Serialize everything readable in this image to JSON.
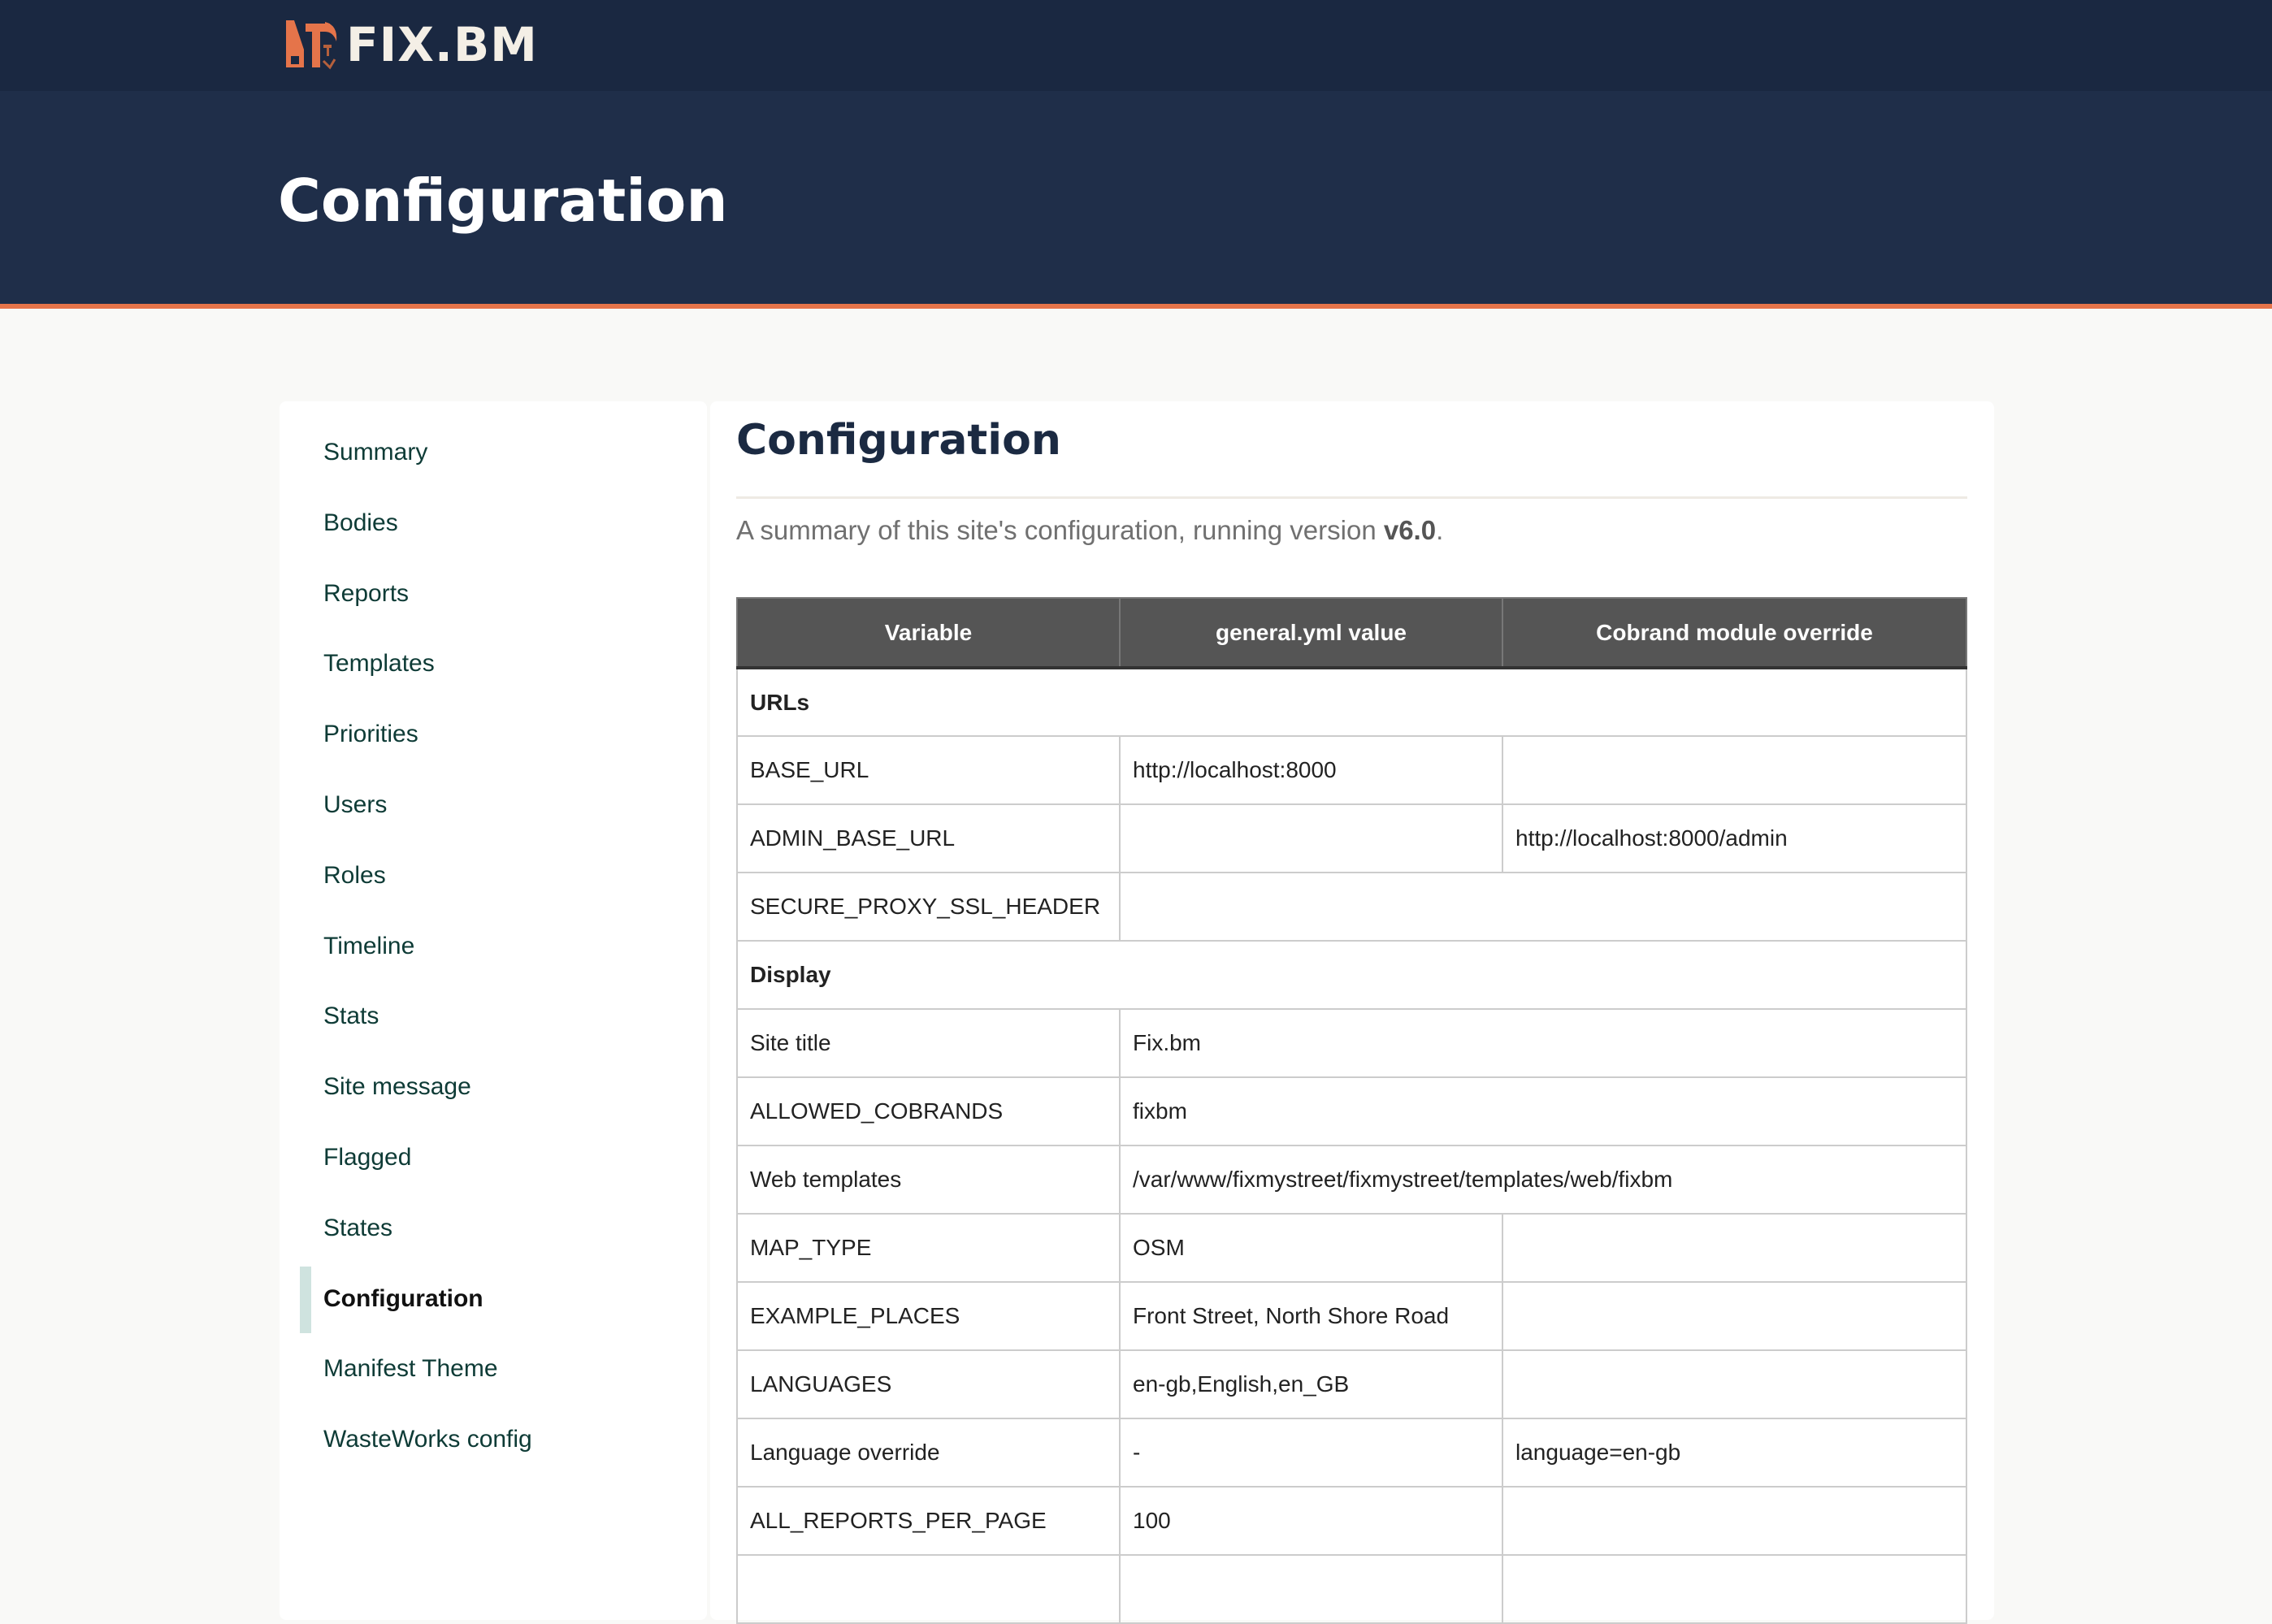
{
  "header": {
    "logo_text": "FIX.BM",
    "title": "Configuration"
  },
  "colors": {
    "header": "#1f2e49",
    "accent": "#e5744a",
    "active_marker": "#cfe3df"
  },
  "sidebar": {
    "items": [
      {
        "label": "Summary"
      },
      {
        "label": "Bodies"
      },
      {
        "label": "Reports"
      },
      {
        "label": "Templates"
      },
      {
        "label": "Priorities"
      },
      {
        "label": "Users"
      },
      {
        "label": "Roles"
      },
      {
        "label": "Timeline"
      },
      {
        "label": "Stats"
      },
      {
        "label": "Site message"
      },
      {
        "label": "Flagged"
      },
      {
        "label": "States"
      },
      {
        "label": "Configuration",
        "active": true
      },
      {
        "label": "Manifest Theme"
      },
      {
        "label": "WasteWorks config"
      }
    ]
  },
  "main": {
    "heading": "Configuration",
    "summary_prefix": "A summary of this site's configuration, running version ",
    "version": "v6.0",
    "summary_suffix": ".",
    "table": {
      "headers": [
        "Variable",
        "general.yml value",
        "Cobrand module override"
      ],
      "rows": [
        {
          "group": "URLs"
        },
        {
          "cells": [
            "BASE_URL",
            "http://localhost:8000",
            ""
          ]
        },
        {
          "cells": [
            "ADMIN_BASE_URL",
            "",
            "http://localhost:8000/admin"
          ]
        },
        {
          "cells": [
            "SECURE_PROXY_SSL_HEADER",
            ""
          ],
          "span": true
        },
        {
          "group": "Display"
        },
        {
          "cells": [
            "Site title",
            "Fix.bm"
          ],
          "span": true
        },
        {
          "cells": [
            "ALLOWED_COBRANDS",
            "fixbm"
          ],
          "span": true
        },
        {
          "cells": [
            "Web templates",
            "/var/www/fixmystreet/fixmystreet/templates/web/fixbm"
          ],
          "span": true
        },
        {
          "cells": [
            "MAP_TYPE",
            "OSM",
            ""
          ]
        },
        {
          "cells": [
            "EXAMPLE_PLACES",
            "Front Street, North Shore Road",
            ""
          ]
        },
        {
          "cells": [
            "LANGUAGES",
            "en-gb,English,en_GB",
            ""
          ]
        },
        {
          "cells": [
            "Language override",
            "-",
            "language=en-gb"
          ]
        },
        {
          "cells": [
            "ALL_REPORTS_PER_PAGE",
            "100",
            ""
          ]
        },
        {
          "cells": [
            "",
            "",
            ""
          ]
        }
      ]
    }
  }
}
